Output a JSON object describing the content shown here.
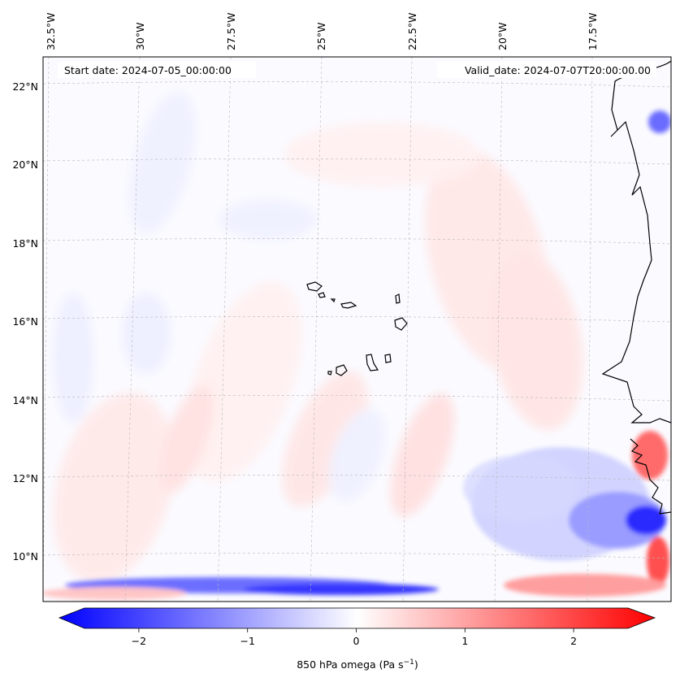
{
  "map": {
    "start_date": "Start date: 2024-07-05_00:00:00",
    "valid_date": "Valid_date: 2024-07-07T20:00:00.00",
    "lon_labels": [
      "32.5°W",
      "30°W",
      "27.5°W",
      "25°W",
      "22.5°W",
      "20°W",
      "17.5°W"
    ],
    "lat_labels": [
      "22°N",
      "20°N",
      "18°N",
      "16°N",
      "14°N",
      "12°N",
      "10°N"
    ],
    "field": "850 hPa omega",
    "colors": {
      "negative": "#0000ff",
      "zero": "#ffffff",
      "positive": "#ff0000",
      "coast": "#000000",
      "grid": "#b0b0b0"
    }
  },
  "colorbar": {
    "label": "850 hPa omega (Pa s",
    "label_exp": "−1",
    "label_close": ")",
    "ticks": [
      "−2",
      "−1",
      "0",
      "1",
      "2"
    ],
    "tick_values": [
      -2,
      -1,
      0,
      1,
      2
    ],
    "range": [
      -2.5,
      2.5
    ]
  }
}
